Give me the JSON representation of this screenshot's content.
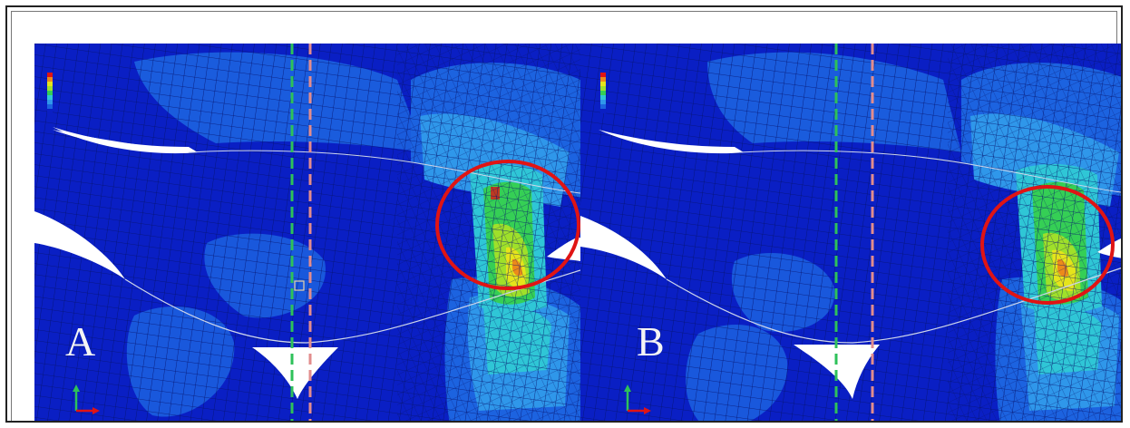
{
  "figure": {
    "panels": [
      {
        "label": "A"
      },
      {
        "label": "B"
      }
    ],
    "colors": {
      "background_mesh": "#0a1fc4",
      "mid_blue": "#1c63e0",
      "light_blue": "#2f97ea",
      "cyan": "#2fc6d6",
      "green": "#35cf55",
      "yellow": "#e5e41b",
      "orange": "#ec8a1a",
      "red_highlight": "#e01414",
      "green_dashed_line": "#2ec15a",
      "pink_dashed_line": "#e28d8d"
    },
    "annotations": {
      "highlight": "red-ellipse-around-stress-concentration",
      "reference_lines": [
        "green-dashed-vertical",
        "pink-dashed-vertical"
      ]
    }
  }
}
